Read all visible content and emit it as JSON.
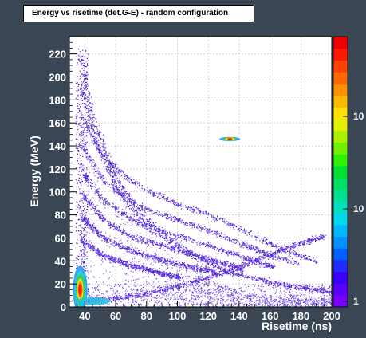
{
  "chart_data": {
    "type": "heatmap",
    "title": "Energy vs risetime (det.G-E) - random configuration",
    "xlabel": "Risetime (ns)",
    "ylabel": "Energy (MeV)",
    "xlim": [
      30,
      200
    ],
    "ylim": [
      0,
      235
    ],
    "x_ticks": [
      "40",
      "60",
      "80",
      "100",
      "120",
      "140",
      "160",
      "180",
      "200"
    ],
    "y_ticks": [
      "0",
      "20",
      "40",
      "60",
      "80",
      "100",
      "120",
      "140",
      "160",
      "180",
      "200",
      "220"
    ],
    "grid": true,
    "log_z": true,
    "z_tick_labels": [
      "1",
      "10",
      "10"
    ],
    "colors": {
      "background": "#3a4653",
      "plot_background": "#ffffff",
      "low_density": "#5a1fd6",
      "high_density": "#ff0000"
    },
    "bands": [
      {
        "points": [
          [
            38,
            218
          ],
          [
            46,
            160
          ],
          [
            60,
            112
          ],
          [
            80,
            76
          ],
          [
            105,
            50
          ],
          [
            130,
            32
          ],
          [
            165,
            20
          ],
          [
            200,
            14
          ]
        ]
      },
      {
        "points": [
          [
            38,
            190
          ],
          [
            48,
            140
          ],
          [
            62,
            100
          ],
          [
            82,
            68
          ],
          [
            108,
            45
          ],
          [
            138,
            29
          ],
          [
            170,
            19
          ],
          [
            200,
            13
          ]
        ]
      },
      {
        "points": [
          [
            38,
            165
          ],
          [
            52,
            130
          ],
          [
            75,
            105
          ],
          [
            100,
            90
          ],
          [
            125,
            78
          ],
          [
            150,
            62
          ],
          [
            172,
            48
          ],
          [
            190,
            40
          ]
        ]
      },
      {
        "points": [
          [
            38,
            140
          ],
          [
            52,
            110
          ],
          [
            72,
            90
          ],
          [
            95,
            78
          ],
          [
            118,
            68
          ],
          [
            142,
            55
          ],
          [
            160,
            45
          ],
          [
            178,
            38
          ]
        ]
      },
      {
        "points": [
          [
            38,
            118
          ],
          [
            52,
            93
          ],
          [
            72,
            75
          ],
          [
            95,
            64
          ],
          [
            118,
            55
          ],
          [
            135,
            47
          ],
          [
            150,
            40
          ],
          [
            162,
            35
          ]
        ]
      },
      {
        "points": [
          [
            38,
            98
          ],
          [
            52,
            76
          ],
          [
            72,
            60
          ],
          [
            95,
            52
          ],
          [
            115,
            44
          ],
          [
            130,
            38
          ],
          [
            142,
            33
          ]
        ]
      },
      {
        "points": [
          [
            38,
            78
          ],
          [
            52,
            60
          ],
          [
            72,
            48
          ],
          [
            92,
            40
          ],
          [
            110,
            35
          ],
          [
            124,
            31
          ]
        ]
      },
      {
        "points": [
          [
            38,
            58
          ],
          [
            52,
            45
          ],
          [
            70,
            36
          ],
          [
            88,
            30
          ],
          [
            102,
            26
          ]
        ]
      },
      {
        "points": [
          [
            40,
            5
          ],
          [
            60,
            8
          ],
          [
            80,
            12
          ],
          [
            100,
            18
          ],
          [
            120,
            26
          ],
          [
            140,
            35
          ],
          [
            160,
            46
          ],
          [
            180,
            56
          ],
          [
            195,
            62
          ]
        ]
      }
    ],
    "hot_spot": {
      "x": 134,
      "y": 146
    },
    "core_spot": {
      "x": 37,
      "y": 15
    }
  }
}
